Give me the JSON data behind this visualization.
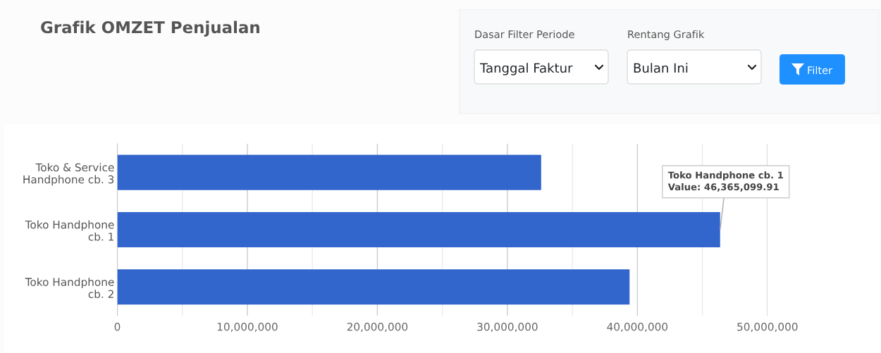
{
  "chart_data": [
    {
      "type": "bar",
      "orientation": "horizontal",
      "title": "Grafik OMZET Penjualan",
      "categories": [
        "Toko & Service Handphone cb. 3",
        "Toko Handphone cb. 1",
        "Toko Handphone cb. 2"
      ],
      "values": [
        32600000,
        46365099.91,
        39400000
      ],
      "color": "#3366cc",
      "xlim": [
        0,
        50000000
      ],
      "xticks": [
        0,
        {
          "value": 5000000,
          "label": null
        },
        {
          "value": 10000000,
          "label": "10,000,000"
        },
        {
          "value": 15000000,
          "label": null
        },
        {
          "value": 20000000,
          "label": "20,000,000"
        },
        {
          "value": 25000000,
          "label": null
        },
        {
          "value": 30000000,
          "label": "30,000,000"
        },
        {
          "value": 35000000,
          "label": null
        },
        {
          "value": 40000000,
          "label": "40,000,000"
        },
        {
          "value": 45000000,
          "label": null
        },
        {
          "value": 50000000,
          "label": "50,000,000"
        }
      ],
      "grid": "x",
      "annotations": [
        {
          "text": "Toko Handphone cb. 1\nValue: 46,365,099.91",
          "x": 46365099.91,
          "y": "Toko Handphone cb. 1"
        }
      ]
    },
    {
      "type": "other",
      "annotations": [
        "Dasar Filter Periode",
        "Tanggal Faktur",
        "Rentang Grafik",
        "Bulan Ini",
        "Filter"
      ]
    }
  ]
}
